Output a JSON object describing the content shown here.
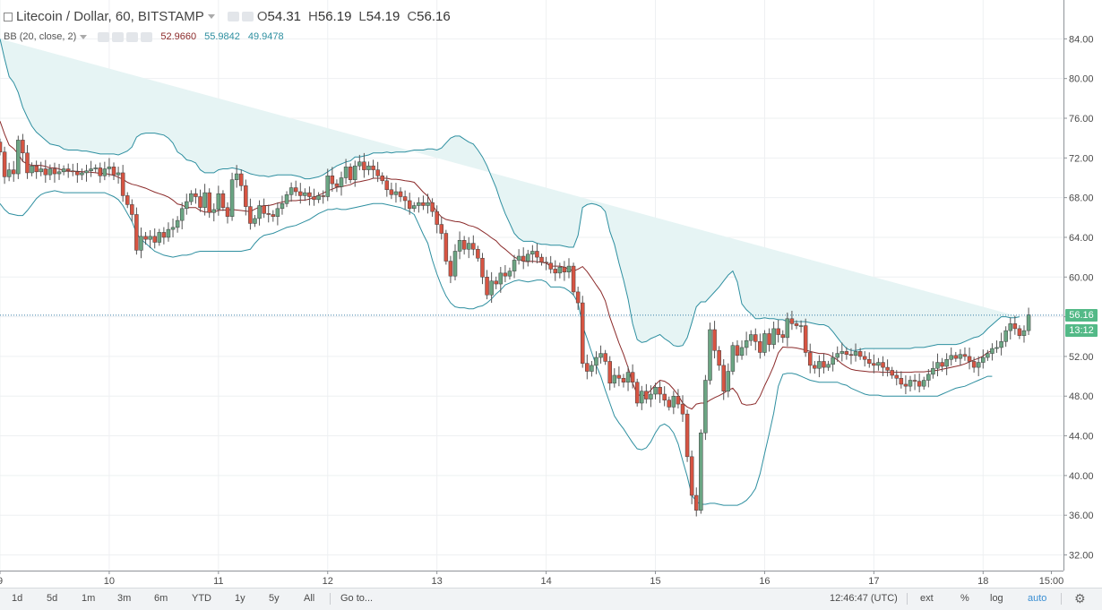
{
  "legend": {
    "symbol": "Litecoin / Dollar, 60, BITSTAMP",
    "o_label": "O",
    "o_value": "54.31",
    "h_label": "H",
    "h_value": "56.19",
    "l_label": "L",
    "l_value": "54.19",
    "c_label": "C",
    "c_value": "56.16",
    "indicator": "BB (20, close, 2)",
    "bb_values": [
      "52.9660",
      "55.9842",
      "49.9478"
    ]
  },
  "price_labels": {
    "last": "56.16",
    "countdown": "13:12"
  },
  "toolbar": {
    "ranges": [
      "1d",
      "5d",
      "1m",
      "3m",
      "6m",
      "YTD",
      "1y",
      "5y",
      "All"
    ],
    "goto": "Go to...",
    "clock": "12:46:47 (UTC)",
    "ext": "ext",
    "percent": "%",
    "log": "log",
    "auto": "auto"
  },
  "colors": {
    "up": "#6ba583",
    "down": "#d75442",
    "bb_band": "#2e8fa0",
    "bb_basis": "#8b2a2a",
    "bb_fill": "#e6f4f4",
    "grid": "#eef0f2",
    "axis_text": "#4a4a4a",
    "last_price_tag": "#53b987",
    "countdown_tag": "#53b987"
  },
  "chart_data": {
    "type": "candlestick",
    "title": "Litecoin / Dollar, 60, BITSTAMP",
    "interval": "60",
    "ylim": [
      30.0,
      86.0
    ],
    "y_ticks": [
      "32.00",
      "36.00",
      "40.00",
      "44.00",
      "48.00",
      "52.00",
      "56.00",
      "60.00",
      "64.00",
      "68.00",
      "72.00",
      "76.00",
      "80.00",
      "84.00"
    ],
    "x_ticks": [
      {
        "label": "9",
        "i": 0
      },
      {
        "label": "10",
        "i": 24
      },
      {
        "label": "11",
        "i": 48
      },
      {
        "label": "12",
        "i": 72
      },
      {
        "label": "13",
        "i": 96
      },
      {
        "label": "14",
        "i": 120
      },
      {
        "label": "15",
        "i": 144
      },
      {
        "label": "16",
        "i": 168
      },
      {
        "label": "17",
        "i": 192
      },
      {
        "label": "18",
        "i": 216
      },
      {
        "label": "15:00",
        "i": 231
      }
    ],
    "grid": true,
    "last_price": 56.16,
    "close": [
      72.6,
      70.1,
      70.8,
      70.4,
      73.8,
      72.5,
      70.5,
      71.2,
      70.6,
      70.9,
      70.3,
      70.9,
      70.4,
      70.6,
      70.9,
      70.7,
      70.6,
      70.3,
      70.5,
      70.7,
      70.9,
      71.0,
      70.2,
      70.9,
      71.1,
      70.3,
      70.5,
      68.2,
      67.3,
      66.3,
      62.7,
      64.1,
      63.8,
      64.1,
      63.5,
      64.5,
      64.0,
      64.8,
      65.0,
      65.7,
      66.9,
      67.6,
      68.4,
      68.1,
      67.0,
      68.5,
      66.5,
      66.8,
      68.4,
      67.0,
      66.1,
      69.8,
      70.4,
      69.2,
      67.1,
      65.4,
      65.9,
      67.2,
      66.4,
      66.3,
      66.1,
      66.9,
      67.4,
      68.3,
      69.0,
      68.6,
      68.2,
      68.5,
      68.1,
      67.8,
      68.2,
      68.1,
      70.2,
      69.4,
      69.1,
      70.0,
      71.1,
      69.8,
      71.2,
      71.6,
      70.8,
      71.2,
      70.8,
      70.2,
      69.7,
      68.8,
      68.3,
      68.6,
      68.1,
      67.7,
      66.9,
      67.2,
      67.5,
      67.2,
      67.5,
      66.6,
      65.3,
      64.4,
      61.6,
      60.1,
      62.6,
      63.7,
      62.8,
      63.4,
      62.8,
      61.9,
      60.0,
      58.2,
      59.6,
      59.3,
      60.4,
      60.1,
      60.6,
      61.7,
      62.1,
      61.6,
      62.3,
      62.6,
      62.0,
      61.5,
      61.4,
      60.8,
      60.4,
      61.0,
      60.5,
      61.1,
      58.5,
      57.4,
      51.3,
      50.5,
      51.1,
      51.9,
      52.3,
      51.5,
      49.3,
      50.1,
      49.8,
      49.4,
      50.4,
      49.4,
      47.3,
      48.5,
      47.7,
      48.2,
      48.9,
      48.2,
      47.6,
      46.9,
      48.0,
      47.2,
      46.2,
      41.9,
      38.0,
      36.5,
      44.3,
      49.6,
      54.7,
      52.6,
      51.1,
      48.5,
      50.5,
      53.1,
      52.1,
      52.9,
      53.6,
      54.2,
      53.5,
      52.4,
      54.3,
      53.2,
      54.8,
      54.2,
      53.9,
      55.8,
      55.3,
      55.1,
      55.1,
      52.4,
      51.1,
      50.8,
      51.5,
      50.9,
      51.2,
      51.9,
      52.3,
      52.5,
      52.2,
      52.1,
      52.5,
      52.0,
      51.7,
      51.3,
      51.1,
      51.4,
      50.9,
      50.6,
      50.1,
      49.8,
      49.2,
      49.0,
      49.6,
      49.5,
      49.0,
      49.6,
      50.2,
      50.8,
      51.4,
      51.0,
      51.7,
      52.1,
      51.8,
      52.2,
      52.0,
      51.5,
      50.9,
      51.4,
      51.9,
      52.3,
      52.8,
      52.9,
      53.5,
      54.6,
      55.3,
      54.8,
      54.1,
      54.6,
      56.2
    ],
    "bb_upper": [
      84.0,
      82.0,
      80.2,
      79.6,
      78.6,
      77.1,
      76.1,
      75.2,
      74.6,
      74.2,
      73.8,
      73.4,
      73.3,
      73.2,
      72.9,
      72.8,
      72.8,
      72.8,
      72.7,
      72.7,
      72.6,
      72.5,
      72.4,
      72.4,
      72.4,
      72.4,
      72.3,
      72.5,
      72.7,
      73.1,
      74.1,
      74.4,
      74.5,
      74.5,
      74.5,
      74.4,
      74.3,
      74.0,
      73.5,
      72.6,
      72.3,
      71.8,
      71.7,
      71.5,
      70.8,
      70.5,
      70.5,
      70.5,
      70.8,
      70.9,
      70.9,
      71.0,
      70.9,
      70.8,
      70.6,
      70.4,
      70.3,
      70.2,
      70.2,
      70.1,
      70.2,
      70.3,
      70.3,
      70.3,
      70.3,
      70.2,
      70.1,
      69.9,
      69.9,
      70.0,
      70.1,
      70.3,
      70.6,
      70.9,
      71.2,
      71.4,
      71.6,
      71.7,
      72.1,
      72.1,
      72.2,
      72.3,
      72.5,
      72.5,
      72.5,
      72.6,
      72.5,
      72.6,
      72.6,
      72.6,
      72.7,
      72.8,
      72.8,
      72.8,
      72.9,
      72.9,
      72.8,
      73.0,
      73.5,
      74.0,
      74.2,
      74.2,
      73.9,
      73.6,
      73.4,
      72.8,
      72.1,
      71.2,
      70.1,
      69.0,
      67.6,
      66.4,
      65.4,
      64.4,
      63.9,
      63.6,
      63.6,
      63.6,
      63.4,
      63.3,
      63.3,
      63.2,
      63.2,
      63.2,
      63.1,
      63.0,
      63.0,
      64.2,
      67.0,
      67.3,
      67.4,
      67.3,
      67.1,
      66.6,
      64.6,
      63.3,
      61.4,
      59.7,
      57.8,
      55.3,
      53.7,
      53.4,
      53.5,
      53.8,
      54.0,
      54.2,
      53.8,
      53.5,
      53.1,
      53.0,
      53.1,
      53.9,
      55.4,
      57.0,
      57.5,
      57.5,
      58.0,
      58.5,
      59.0,
      59.6,
      60.2,
      60.6,
      59.5,
      57.3,
      56.7,
      56.3,
      55.8,
      55.8,
      55.9,
      55.8,
      55.8,
      55.7,
      55.7,
      55.5,
      55.5,
      55.5,
      55.5,
      55.5,
      55.4,
      55.3,
      55.2,
      55.2,
      55.0,
      54.5,
      53.9,
      53.3,
      52.8,
      52.6,
      52.6,
      52.7,
      52.8,
      52.8,
      52.8,
      52.8,
      52.8,
      52.8,
      52.8,
      52.8,
      52.8,
      52.8,
      52.8,
      52.9,
      52.9,
      52.9,
      53.0,
      53.1,
      53.2,
      53.2,
      53.2,
      53.2,
      53.2,
      53.3,
      53.5,
      53.7,
      53.9,
      54.0,
      54.3,
      54.8,
      55.2,
      55.6,
      56.0,
      56.0,
      55.9,
      55.9,
      56.0
    ],
    "bb_lower": [
      67.4,
      66.8,
      66.4,
      66.3,
      66.2,
      66.2,
      66.7,
      67.3,
      67.9,
      68.3,
      68.5,
      68.6,
      68.7,
      68.6,
      68.5,
      68.5,
      68.5,
      68.5,
      68.5,
      68.5,
      68.5,
      68.5,
      68.5,
      68.5,
      68.3,
      68.1,
      67.8,
      67.2,
      66.4,
      65.6,
      64.4,
      63.8,
      63.4,
      63.0,
      62.6,
      62.4,
      62.2,
      62.1,
      62.0,
      62.1,
      62.2,
      62.2,
      62.3,
      62.5,
      62.6,
      62.6,
      62.6,
      62.6,
      62.6,
      62.6,
      62.6,
      62.6,
      62.6,
      62.6,
      62.7,
      62.8,
      63.4,
      63.9,
      64.2,
      64.3,
      64.4,
      64.6,
      64.8,
      65.0,
      65.1,
      65.2,
      65.4,
      65.6,
      65.8,
      66.1,
      66.4,
      66.6,
      66.8,
      66.8,
      66.9,
      66.8,
      66.8,
      66.9,
      67.0,
      67.1,
      67.2,
      67.3,
      67.4,
      67.4,
      67.4,
      67.3,
      67.2,
      67.1,
      67.0,
      66.8,
      66.6,
      66.3,
      65.3,
      64.3,
      63.4,
      61.7,
      60.3,
      59.1,
      58.1,
      57.4,
      57.0,
      56.9,
      56.9,
      56.8,
      56.8,
      57.0,
      57.1,
      57.4,
      57.8,
      58.3,
      58.7,
      59.2,
      59.4,
      59.6,
      59.7,
      59.6,
      59.5,
      59.6,
      59.7,
      59.7,
      59.5,
      59.0,
      59.0,
      59.0,
      58.9,
      58.6,
      58.2,
      57.4,
      55.1,
      53.8,
      52.4,
      51.1,
      50.0,
      48.6,
      47.3,
      46.0,
      45.3,
      44.7,
      44.0,
      43.3,
      42.7,
      42.6,
      42.8,
      43.4,
      44.3,
      45.0,
      45.2,
      44.9,
      44.3,
      43.2,
      41.5,
      39.9,
      38.0,
      37.4,
      37.1,
      37.1,
      37.2,
      37.2,
      37.1,
      37.0,
      37.0,
      37.0,
      37.0,
      37.2,
      37.5,
      38.0,
      38.7,
      40.2,
      42.2,
      44.2,
      46.3,
      49.0,
      50.2,
      50.3,
      50.3,
      50.2,
      50.0,
      49.8,
      49.6,
      49.5,
      49.4,
      49.4,
      49.4,
      49.4,
      49.4,
      49.2,
      49.1,
      48.8,
      48.6,
      48.4,
      48.2,
      48.1,
      48.1,
      48.1,
      48.0,
      48.0,
      48.0,
      48.0,
      48.0,
      48.0,
      48.0,
      48.0,
      48.0,
      48.0,
      48.0,
      48.0,
      48.0,
      48.2,
      48.4,
      48.6,
      48.8,
      48.9,
      49.0,
      49.2,
      49.4,
      49.6,
      49.8,
      50.0,
      50.0
    ]
  }
}
